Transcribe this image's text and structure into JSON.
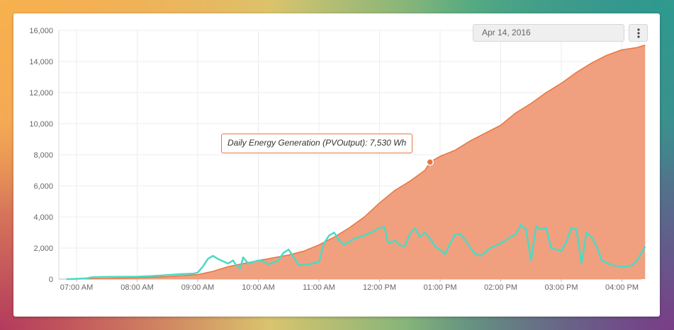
{
  "date_picker": {
    "value": "Apr 14, 2016"
  },
  "menu": {
    "icon": "kebab-menu-icon"
  },
  "tooltip": {
    "text": "Daily Energy Generation (PVOutput): 7,530 Wh"
  },
  "chart_data": {
    "type": "area",
    "title": "",
    "xlabel": "",
    "ylabel": "",
    "ylim": [
      0,
      16000
    ],
    "xlim": [
      "06:50",
      "16:25"
    ],
    "yticks": [
      "0",
      "2,000",
      "4,000",
      "6,000",
      "8,000",
      "10,000",
      "12,000",
      "14,000",
      "16,000"
    ],
    "xticks": [
      {
        "t": "07:00",
        "label": "07:00 AM"
      },
      {
        "t": "08:00",
        "label": "08:00 AM"
      },
      {
        "t": "09:00",
        "label": "09:00 AM"
      },
      {
        "t": "10:00",
        "label": "10:00 AM"
      },
      {
        "t": "11:00",
        "label": "11:00 AM"
      },
      {
        "t": "12:00",
        "label": "12:00 PM"
      },
      {
        "t": "13:00",
        "label": "01:00 PM"
      },
      {
        "t": "14:00",
        "label": "02:00 PM"
      },
      {
        "t": "15:00",
        "label": "03:00 PM"
      },
      {
        "t": "16:00",
        "label": "04:00 PM"
      }
    ],
    "grid": true,
    "series": [
      {
        "name": "Daily Energy Generation (PVOutput)",
        "unit": "Wh",
        "color": "#e8753f",
        "fill": "#f0a07e",
        "style": "area",
        "points": [
          [
            "06:50",
            0
          ],
          [
            "07:10",
            20
          ],
          [
            "07:30",
            40
          ],
          [
            "08:00",
            90
          ],
          [
            "08:30",
            160
          ],
          [
            "09:00",
            290
          ],
          [
            "09:15",
            500
          ],
          [
            "09:30",
            800
          ],
          [
            "10:00",
            1200
          ],
          [
            "10:30",
            1550
          ],
          [
            "10:45",
            1800
          ],
          [
            "11:00",
            2200
          ],
          [
            "11:15",
            2700
          ],
          [
            "11:30",
            3300
          ],
          [
            "11:45",
            4000
          ],
          [
            "12:00",
            4900
          ],
          [
            "12:15",
            5700
          ],
          [
            "12:30",
            6300
          ],
          [
            "12:45",
            7000
          ],
          [
            "12:50",
            7530
          ],
          [
            "13:00",
            7900
          ],
          [
            "13:15",
            8300
          ],
          [
            "13:30",
            8900
          ],
          [
            "13:45",
            9400
          ],
          [
            "14:00",
            9900
          ],
          [
            "14:15",
            10700
          ],
          [
            "14:30",
            11300
          ],
          [
            "14:45",
            12000
          ],
          [
            "15:00",
            12600
          ],
          [
            "15:15",
            13300
          ],
          [
            "15:30",
            13900
          ],
          [
            "15:45",
            14400
          ],
          [
            "16:00",
            14750
          ],
          [
            "16:15",
            14900
          ],
          [
            "16:23",
            15050
          ]
        ]
      },
      {
        "name": "",
        "color": "#4dd9c4",
        "style": "line",
        "points": [
          [
            "06:50",
            0
          ],
          [
            "07:00",
            20
          ],
          [
            "07:10",
            50
          ],
          [
            "07:15",
            120
          ],
          [
            "07:30",
            150
          ],
          [
            "08:00",
            160
          ],
          [
            "08:15",
            200
          ],
          [
            "08:30",
            260
          ],
          [
            "08:45",
            330
          ],
          [
            "08:55",
            350
          ],
          [
            "09:00",
            420
          ],
          [
            "09:05",
            800
          ],
          [
            "09:10",
            1300
          ],
          [
            "09:15",
            1500
          ],
          [
            "09:20",
            1300
          ],
          [
            "09:30",
            1000
          ],
          [
            "09:35",
            1200
          ],
          [
            "09:38",
            900
          ],
          [
            "09:42",
            700
          ],
          [
            "09:45",
            1400
          ],
          [
            "09:50",
            1000
          ],
          [
            "10:00",
            1200
          ],
          [
            "10:05",
            1150
          ],
          [
            "10:10",
            950
          ],
          [
            "10:20",
            1200
          ],
          [
            "10:25",
            1700
          ],
          [
            "10:30",
            1900
          ],
          [
            "10:35",
            1400
          ],
          [
            "10:40",
            900
          ],
          [
            "10:50",
            950
          ],
          [
            "11:00",
            1100
          ],
          [
            "11:05",
            2300
          ],
          [
            "11:10",
            2800
          ],
          [
            "11:15",
            3000
          ],
          [
            "11:20",
            2500
          ],
          [
            "11:25",
            2200
          ],
          [
            "11:35",
            2600
          ],
          [
            "11:45",
            2800
          ],
          [
            "11:55",
            3100
          ],
          [
            "12:00",
            3300
          ],
          [
            "12:05",
            3350
          ],
          [
            "12:08",
            2400
          ],
          [
            "12:10",
            2300
          ],
          [
            "12:15",
            2500
          ],
          [
            "12:20",
            2200
          ],
          [
            "12:25",
            2100
          ],
          [
            "12:30",
            2900
          ],
          [
            "12:35",
            3300
          ],
          [
            "12:40",
            2700
          ],
          [
            "12:45",
            3000
          ],
          [
            "12:50",
            2600
          ],
          [
            "12:55",
            2100
          ],
          [
            "13:00",
            1900
          ],
          [
            "13:05",
            1600
          ],
          [
            "13:10",
            2300
          ],
          [
            "13:15",
            2900
          ],
          [
            "13:20",
            2900
          ],
          [
            "13:25",
            2500
          ],
          [
            "13:30",
            2000
          ],
          [
            "13:35",
            1600
          ],
          [
            "13:40",
            1500
          ],
          [
            "13:50",
            2000
          ],
          [
            "14:00",
            2300
          ],
          [
            "14:15",
            2900
          ],
          [
            "14:20",
            3500
          ],
          [
            "14:25",
            3200
          ],
          [
            "14:30",
            1200
          ],
          [
            "14:35",
            3400
          ],
          [
            "14:40",
            3200
          ],
          [
            "14:45",
            3300
          ],
          [
            "14:50",
            2000
          ],
          [
            "14:55",
            1900
          ],
          [
            "15:00",
            1800
          ],
          [
            "15:05",
            2400
          ],
          [
            "15:10",
            3300
          ],
          [
            "15:15",
            3200
          ],
          [
            "15:20",
            1000
          ],
          [
            "15:25",
            3000
          ],
          [
            "15:30",
            2700
          ],
          [
            "15:35",
            2100
          ],
          [
            "15:40",
            1200
          ],
          [
            "15:50",
            900
          ],
          [
            "16:00",
            800
          ],
          [
            "16:05",
            800
          ],
          [
            "16:10",
            900
          ],
          [
            "16:15",
            1200
          ],
          [
            "16:23",
            2100
          ]
        ]
      }
    ],
    "highlight": {
      "series": 0,
      "t": "12:50",
      "value": 7530
    }
  }
}
